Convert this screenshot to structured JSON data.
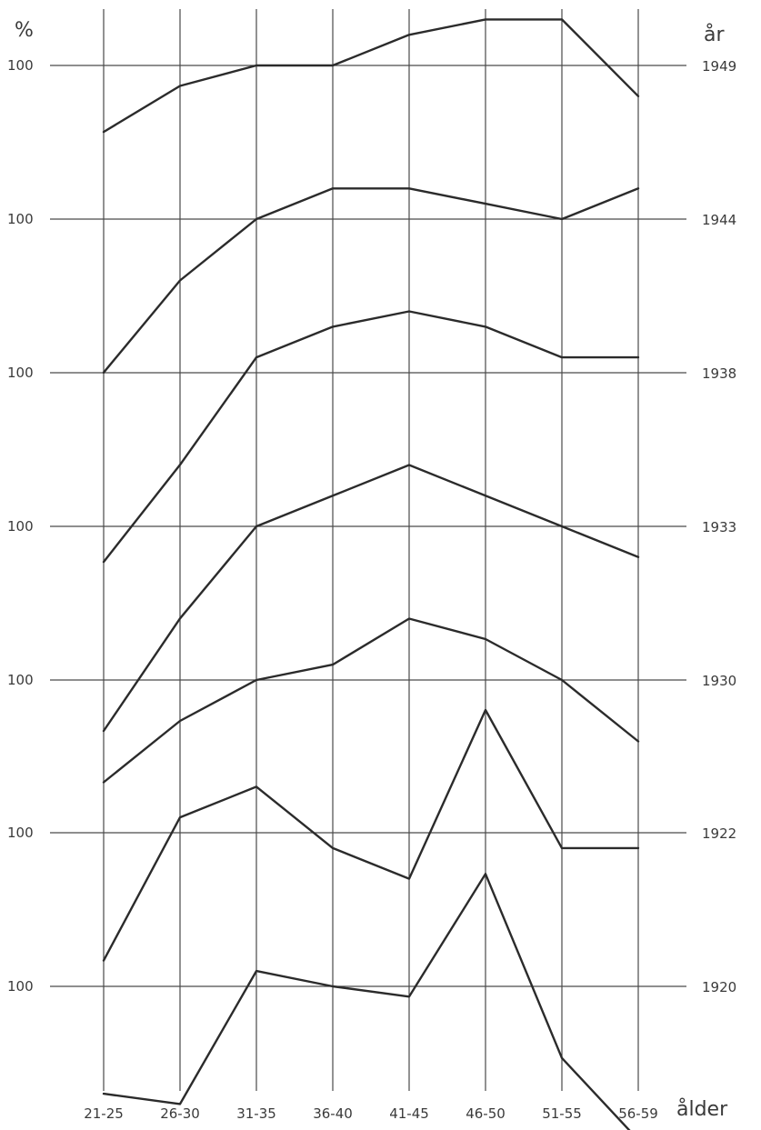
{
  "chart_data": {
    "type": "line",
    "ylabel": "%",
    "xlabel": "ålder",
    "series_axis_label": "år",
    "baseline_label": "100",
    "categories": [
      "21-25",
      "26-30",
      "31-35",
      "36-40",
      "41-45",
      "46-50",
      "51-55",
      "56-59"
    ],
    "offset_scale": "each series shown with its own 100% baseline; values in percent of that baseline",
    "series": [
      {
        "name": "1949",
        "values": [
          87,
          96,
          100,
          100,
          106,
          109,
          109,
          94
        ]
      },
      {
        "name": "1944",
        "values": [
          70,
          88,
          100,
          106,
          106,
          103,
          100,
          106
        ]
      },
      {
        "name": "1938",
        "values": [
          63,
          82,
          103,
          109,
          112,
          109,
          103,
          103
        ]
      },
      {
        "name": "1933",
        "values": [
          60,
          82,
          100,
          106,
          112,
          106,
          100,
          94
        ]
      },
      {
        "name": "1930",
        "values": [
          80,
          92,
          100,
          103,
          112,
          108,
          100,
          88
        ]
      },
      {
        "name": "1922",
        "values": [
          75,
          103,
          109,
          97,
          91,
          124,
          97,
          97
        ]
      },
      {
        "name": "1920",
        "values": [
          79,
          77,
          103,
          100,
          98,
          122,
          86,
          70
        ]
      }
    ]
  }
}
